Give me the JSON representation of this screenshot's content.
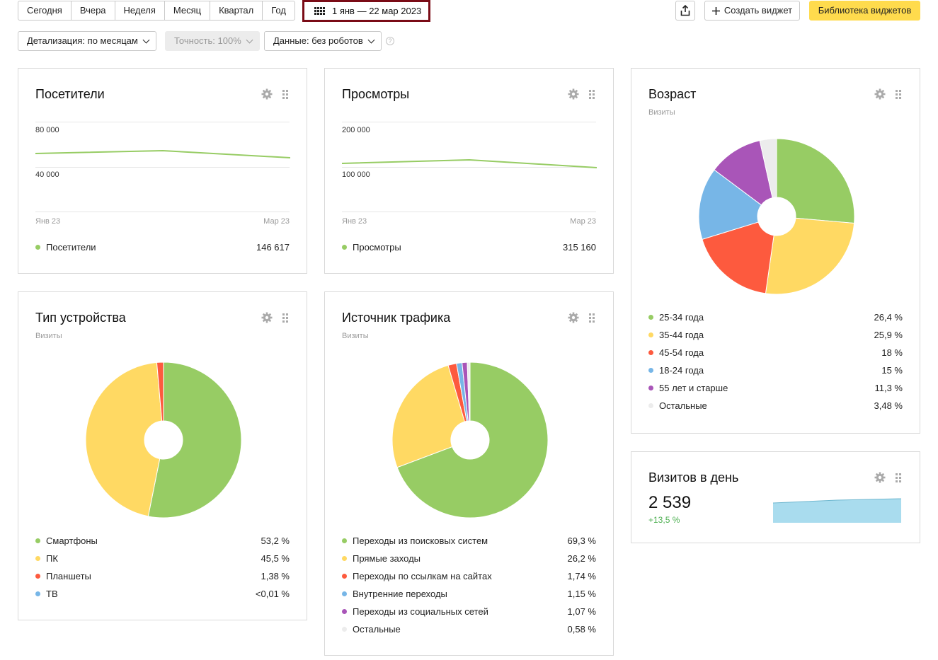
{
  "toolbar": {
    "periods": [
      "Сегодня",
      "Вчера",
      "Неделя",
      "Месяц",
      "Квартал",
      "Год"
    ],
    "date_range": "1 янв — 22 мар 2023",
    "create_widget": "Создать виджет",
    "widget_library": "Библиотека виджетов",
    "detail": "Детализация: по месяцам",
    "accuracy": "Точность: 100%",
    "data_filter": "Данные: без роботов",
    "help": "?"
  },
  "colors": {
    "green": "#97cc64",
    "yellow": "#ffd963",
    "red": "#fd5a3e",
    "blue": "#77b6e7",
    "purple": "#a955b8",
    "lightgray": "#ececec",
    "accent": "#ffdb4d",
    "date_border": "#7a0b16"
  },
  "visitors": {
    "title": "Посетители",
    "y_top": "80 000",
    "y_mid": "40 000",
    "x_start": "Янв 23",
    "x_end": "Мар 23",
    "legend_label": "Посетители",
    "legend_value": "146 617"
  },
  "views": {
    "title": "Просмотры",
    "y_top": "200 000",
    "y_mid": "100 000",
    "x_start": "Янв 23",
    "x_end": "Мар 23",
    "legend_label": "Просмотры",
    "legend_value": "315 160"
  },
  "age": {
    "title": "Возраст",
    "subtitle": "Визиты",
    "items": [
      {
        "label": "25-34 года",
        "value": "26,4 %",
        "pct": 26.4,
        "color": "#97cc64"
      },
      {
        "label": "35-44 года",
        "value": "25,9 %",
        "pct": 25.9,
        "color": "#ffd963"
      },
      {
        "label": "45-54 года",
        "value": "18 %",
        "pct": 18,
        "color": "#fd5a3e"
      },
      {
        "label": "18-24 года",
        "value": "15 %",
        "pct": 15,
        "color": "#77b6e7"
      },
      {
        "label": "55 лет и старше",
        "value": "11,3 %",
        "pct": 11.3,
        "color": "#a955b8"
      },
      {
        "label": "Остальные",
        "value": "3,48 %",
        "pct": 3.48,
        "color": "#ececec"
      }
    ]
  },
  "devices": {
    "title": "Тип устройства",
    "subtitle": "Визиты",
    "items": [
      {
        "label": "Смартфоны",
        "value": "53,2 %",
        "pct": 53.2,
        "color": "#97cc64"
      },
      {
        "label": "ПК",
        "value": "45,5 %",
        "pct": 45.5,
        "color": "#ffd963"
      },
      {
        "label": "Планшеты",
        "value": "1,38 %",
        "pct": 1.38,
        "color": "#fd5a3e"
      },
      {
        "label": "ТВ",
        "value": "<0,01 %",
        "pct": 0.005,
        "color": "#77b6e7"
      }
    ]
  },
  "traffic": {
    "title": "Источник трафика",
    "subtitle": "Визиты",
    "items": [
      {
        "label": "Переходы из поисковых систем",
        "value": "69,3 %",
        "pct": 69.3,
        "color": "#97cc64"
      },
      {
        "label": "Прямые заходы",
        "value": "26,2 %",
        "pct": 26.2,
        "color": "#ffd963"
      },
      {
        "label": "Переходы по ссылкам на сайтах",
        "value": "1,74 %",
        "pct": 1.74,
        "color": "#fd5a3e"
      },
      {
        "label": "Внутренние переходы",
        "value": "1,15 %",
        "pct": 1.15,
        "color": "#77b6e7"
      },
      {
        "label": "Переходы из социальных сетей",
        "value": "1,07 %",
        "pct": 1.07,
        "color": "#a955b8"
      },
      {
        "label": "Остальные",
        "value": "0,58 %",
        "pct": 0.58,
        "color": "#ececec"
      }
    ]
  },
  "visits_per_day": {
    "title": "Визитов в день",
    "value": "2 539",
    "delta": "+13,5 %"
  }
}
